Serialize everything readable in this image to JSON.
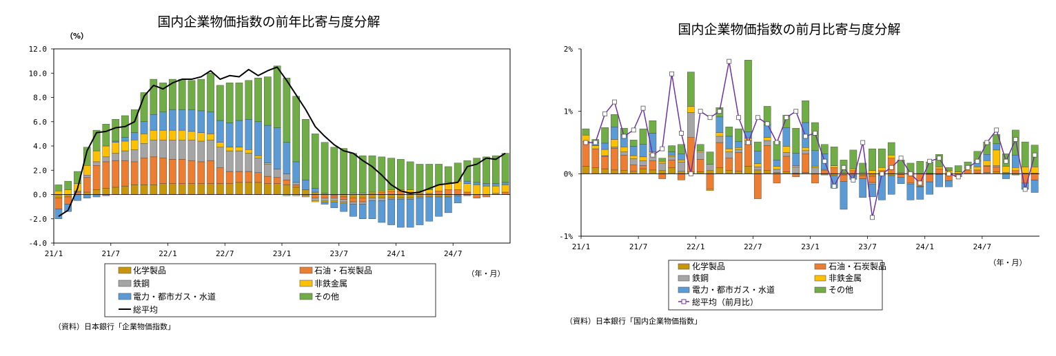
{
  "colors": {
    "chem": "#c8960a",
    "oil": "#ed7d31",
    "steel": "#a5a5a5",
    "nonferrous": "#ffc000",
    "power": "#5b9bd5",
    "other": "#70ad47",
    "total_left": "#000000",
    "total_right": "#7030a0"
  },
  "left": {
    "title": "国内企業物価指数の前年比寄与度分解",
    "unit": "（%）",
    "period_label": "（年・月）",
    "source": "（資料）日本銀行「企業物価指数」",
    "legend": [
      "化学製品",
      "石油・石炭製品",
      "鉄鋼",
      "非鉄金属",
      "電力・都市ガス・水道",
      "その他",
      "総平均"
    ]
  },
  "right": {
    "title": "国内企業物価指数の前月比寄与度分解",
    "period_label": "（年・月）",
    "source": "（資料）日本銀行「国内企業物価指数」",
    "legend": [
      "化学製品",
      "石油・石炭製品",
      "鉄鋼",
      "非鉄金属",
      "電力・都市ガス・水道",
      "その他",
      "総平均（前月比）"
    ]
  },
  "chart_data": [
    {
      "type": "bar",
      "stacked": true,
      "title": "国内企業物価指数の前年比寄与度分解",
      "ylabel": "（%）",
      "xlabel": "（年・月）",
      "ylim": [
        -4.0,
        12.0
      ],
      "yticks": [
        "12.0",
        "10.0",
        "8.0",
        "6.0",
        "4.0",
        "2.0",
        "0.0",
        "-2.0",
        "-4.0"
      ],
      "xticks": [
        "21/1",
        "21/7",
        "22/1",
        "22/7",
        "23/1",
        "23/7",
        "24/1",
        "24/7"
      ],
      "grid": false,
      "legend_position": "bottom",
      "series": [
        {
          "name": "化学製品",
          "values": [
            -0.3,
            -0.2,
            0.0,
            0.2,
            0.4,
            0.5,
            0.6,
            0.7,
            0.8,
            0.8,
            0.8,
            0.9,
            0.9,
            0.9,
            0.9,
            0.9,
            0.9,
            0.9,
            0.9,
            1.0,
            1.0,
            1.0,
            0.9,
            0.9,
            0.8,
            0.6,
            0.4,
            0.2,
            0.1,
            -0.1,
            -0.2,
            -0.3,
            -0.3,
            -0.3,
            -0.3,
            -0.3,
            -0.3,
            -0.3,
            -0.2,
            -0.2,
            -0.2,
            -0.2,
            -0.1,
            -0.1,
            0.0,
            0.0,
            0.0,
            0.0
          ]
        },
        {
          "name": "石油・石炭製品",
          "values": [
            -0.9,
            -0.6,
            0.2,
            1.2,
            2.0,
            2.2,
            2.2,
            2.1,
            1.9,
            2.2,
            2.3,
            2.1,
            2.0,
            2.0,
            1.9,
            1.8,
            1.9,
            1.3,
            1.0,
            0.9,
            0.9,
            0.8,
            0.6,
            0.5,
            0.4,
            0.2,
            -0.1,
            -0.3,
            -0.3,
            -0.2,
            -0.2,
            -0.3,
            -0.3,
            0.1,
            0.2,
            0.3,
            0.3,
            0.2,
            0.1,
            0.1,
            0.3,
            0.4,
            0.4,
            0.2,
            -0.3,
            -0.2,
            0.1,
            0.2
          ]
        },
        {
          "name": "鉄鋼",
          "values": [
            0.0,
            0.0,
            0.1,
            0.2,
            0.3,
            0.4,
            0.6,
            0.8,
            1.0,
            1.2,
            1.4,
            1.5,
            1.6,
            1.6,
            1.7,
            1.7,
            1.7,
            1.7,
            1.7,
            1.7,
            1.5,
            1.2,
            1.0,
            0.7,
            0.5,
            0.2,
            0.0,
            -0.2,
            -0.2,
            -0.2,
            -0.2,
            -0.2,
            -0.2,
            -0.2,
            -0.2,
            -0.1,
            -0.1,
            -0.1,
            -0.1,
            0.0,
            0.0,
            0.0,
            0.0,
            0.0,
            0.0,
            0.0,
            0.0,
            0.0
          ]
        },
        {
          "name": "非鉄金属",
          "values": [
            0.3,
            0.4,
            0.6,
            0.8,
            0.9,
            0.9,
            0.9,
            0.8,
            0.8,
            0.8,
            0.8,
            0.8,
            0.8,
            0.8,
            0.7,
            0.7,
            0.5,
            0.4,
            0.3,
            0.3,
            0.3,
            0.2,
            0.1,
            0.0,
            -0.1,
            -0.1,
            -0.1,
            -0.1,
            -0.1,
            -0.1,
            -0.1,
            0.1,
            0.1,
            0.1,
            0.1,
            0.1,
            0.1,
            0.2,
            0.2,
            0.3,
            0.5,
            0.6,
            0.7,
            0.7,
            0.8,
            0.7,
            0.6,
            0.6
          ]
        },
        {
          "name": "電力・都市ガス・水道",
          "values": [
            -0.8,
            -0.6,
            -0.5,
            -0.3,
            -0.2,
            -0.1,
            0.1,
            0.3,
            0.6,
            1.0,
            1.3,
            1.5,
            1.7,
            1.7,
            1.8,
            1.8,
            1.8,
            1.8,
            2.0,
            2.2,
            2.5,
            2.8,
            3.1,
            3.4,
            2.6,
            1.7,
            0.8,
            0.3,
            -0.2,
            -0.5,
            -0.7,
            -1.0,
            -1.2,
            -1.5,
            -1.8,
            -2.1,
            -2.3,
            -2.3,
            -2.2,
            -2.0,
            -1.6,
            -1.3,
            -0.6,
            0.2,
            0.2,
            0.2,
            0.2,
            0.2
          ]
        },
        {
          "name": "その他",
          "values": [
            0.5,
            0.7,
            1.0,
            1.5,
            1.7,
            1.8,
            1.8,
            1.8,
            1.9,
            2.4,
            2.9,
            2.4,
            2.5,
            2.5,
            2.4,
            2.6,
            3.2,
            2.9,
            3.3,
            3.1,
            3.2,
            3.6,
            4.0,
            5.1,
            5.3,
            5.4,
            5.0,
            4.5,
            4.2,
            3.9,
            3.8,
            3.3,
            3.1,
            3.0,
            2.8,
            2.6,
            2.5,
            2.3,
            2.2,
            2.1,
            1.7,
            1.3,
            1.5,
            1.7,
            2.0,
            2.2,
            2.3,
            2.4
          ]
        },
        {
          "name": "総平均",
          "type": "line",
          "values": [
            -1.8,
            -1.3,
            0.5,
            3.6,
            5.1,
            5.2,
            5.5,
            5.6,
            6.0,
            8.1,
            9.0,
            8.7,
            9.2,
            9.5,
            9.5,
            9.7,
            10.2,
            9.5,
            9.8,
            9.7,
            10.3,
            9.8,
            10.2,
            10.5,
            9.4,
            8.2,
            7.0,
            5.6,
            4.8,
            4.1,
            3.6,
            3.4,
            2.8,
            2.3,
            1.6,
            0.8,
            0.3,
            0.1,
            0.2,
            0.5,
            0.8,
            0.9,
            1.0,
            2.3,
            2.5,
            3.0,
            2.9,
            3.4
          ]
        }
      ]
    },
    {
      "type": "bar",
      "stacked": true,
      "title": "国内企業物価指数の前月比寄与度分解",
      "xlabel": "（年・月）",
      "ylim": [
        -1,
        2
      ],
      "yticks": [
        "2%",
        "1%",
        "0%",
        "-1%"
      ],
      "xticks": [
        "21/1",
        "21/7",
        "22/1",
        "22/7",
        "23/1",
        "23/7",
        "24/1",
        "24/7"
      ],
      "grid": false,
      "legend_position": "bottom",
      "series": [
        {
          "name": "化学製品",
          "values": [
            0.12,
            0.1,
            0.08,
            0.06,
            0.05,
            0.04,
            0.08,
            0.06,
            0.05,
            0.1,
            0.04,
            0.03,
            0.03,
            0.05,
            0.1,
            0.05,
            0.04,
            0.12,
            0.06,
            0.05,
            0.02,
            0.03,
            0.01,
            0.02,
            0.0,
            -0.02,
            -0.03,
            -0.02,
            -0.02,
            -0.03,
            -0.04,
            -0.02,
            -0.03,
            -0.01,
            0.0,
            0.0,
            -0.01,
            -0.01,
            -0.01,
            0.0,
            0.0,
            0.01,
            0.02,
            0.03,
            0.02,
            -0.02,
            0.01,
            0.01
          ]
        },
        {
          "name": "石油・石炭製品",
          "values": [
            0.4,
            0.3,
            0.2,
            0.35,
            0.25,
            0.1,
            0.05,
            0.15,
            -0.08,
            0.12,
            -0.1,
            0.55,
            0.2,
            -0.25,
            0.4,
            0.2,
            0.3,
            0.35,
            -0.4,
            0.4,
            -0.15,
            0.25,
            -0.05,
            0.3,
            -0.15,
            0.05,
            0.1,
            -0.1,
            0.05,
            -0.05,
            -0.1,
            0.05,
            0.25,
            -0.05,
            -0.15,
            -0.2,
            -0.12,
            0.08,
            -0.1,
            -0.05,
            0.05,
            0.05,
            0.1,
            0.08,
            0.0,
            0.05,
            -0.15,
            -0.1
          ]
        },
        {
          "name": "鉄鋼",
          "values": [
            0.0,
            0.0,
            0.01,
            0.02,
            0.05,
            0.1,
            0.08,
            0.1,
            0.12,
            0.06,
            0.15,
            0.4,
            0.12,
            0.1,
            0.1,
            0.1,
            0.05,
            0.06,
            0.05,
            0.08,
            0.05,
            0.06,
            0.1,
            0.05,
            0.1,
            0.02,
            0.0,
            0.0,
            -0.02,
            0.0,
            -0.03,
            0.0,
            0.0,
            0.0,
            -0.02,
            -0.01,
            0.0,
            0.0,
            0.0,
            0.0,
            0.0,
            0.0,
            0.01,
            0.02,
            0.0,
            0.0,
            0.0,
            0.0
          ]
        },
        {
          "name": "非鉄金属",
          "values": [
            0.1,
            0.05,
            0.1,
            0.12,
            0.08,
            0.05,
            0.06,
            0.04,
            0.03,
            0.02,
            0.03,
            0.1,
            0.02,
            -0.02,
            0.06,
            0.05,
            0.03,
            0.04,
            0.05,
            0.05,
            0.05,
            0.1,
            0.02,
            0.05,
            0.02,
            0.0,
            0.03,
            0.02,
            0.03,
            0.02,
            0.05,
            0.05,
            0.05,
            0.02,
            0.02,
            0.0,
            0.01,
            0.03,
            0.05,
            0.03,
            0.04,
            0.05,
            0.08,
            0.25,
            0.1,
            0.05,
            0.1,
            0.1
          ]
        },
        {
          "name": "電力・都市ガス・水道",
          "values": [
            0.0,
            0.05,
            0.1,
            0.2,
            0.2,
            0.15,
            0.2,
            0.3,
            0.0,
            0.05,
            0.1,
            0.0,
            0.0,
            0.0,
            0.25,
            0.2,
            0.1,
            0.1,
            0.2,
            0.2,
            0.1,
            0.3,
            0.2,
            0.4,
            0.25,
            0.25,
            -0.2,
            -0.45,
            -0.05,
            -0.3,
            -0.2,
            -0.4,
            -0.3,
            -0.1,
            -0.25,
            -0.2,
            -0.2,
            -0.2,
            -0.1,
            0.0,
            0.0,
            0.1,
            0.1,
            0.1,
            -0.08,
            0.2,
            -0.1,
            -0.2
          ]
        },
        {
          "name": "その他",
          "values": [
            0.1,
            0.05,
            0.25,
            0.2,
            0.1,
            0.1,
            0.25,
            0.2,
            0.05,
            0.1,
            0.15,
            0.55,
            0.1,
            0.2,
            0.15,
            0.15,
            0.2,
            1.15,
            0.15,
            0.3,
            0.3,
            0.2,
            0.4,
            0.35,
            0.45,
            0.15,
            0.3,
            0.2,
            0.3,
            0.15,
            0.35,
            0.3,
            0.2,
            0.2,
            0.15,
            0.2,
            0.18,
            0.2,
            0.05,
            0.1,
            0.1,
            0.15,
            0.2,
            0.15,
            0.2,
            0.4,
            0.4,
            0.35
          ]
        },
        {
          "name": "総平均（前月比）",
          "type": "line",
          "values": [
            0.5,
            0.5,
            0.96,
            1.15,
            0.6,
            0.7,
            1.05,
            0.3,
            0.4,
            1.6,
            0.65,
            0.0,
            1.0,
            0.9,
            1.0,
            1.8,
            0.9,
            0.5,
            0.9,
            0.8,
            0.5,
            0.9,
            1.0,
            0.6,
            0.65,
            0.2,
            -0.2,
            0.1,
            -0.1,
            0.5,
            -0.7,
            0.0,
            0.1,
            0.25,
            0.0,
            -0.15,
            0.2,
            0.25,
            0.0,
            -0.05,
            0.1,
            0.2,
            0.5,
            0.7,
            0.2,
            0.55,
            -0.25,
            0.3
          ]
        }
      ]
    }
  ]
}
